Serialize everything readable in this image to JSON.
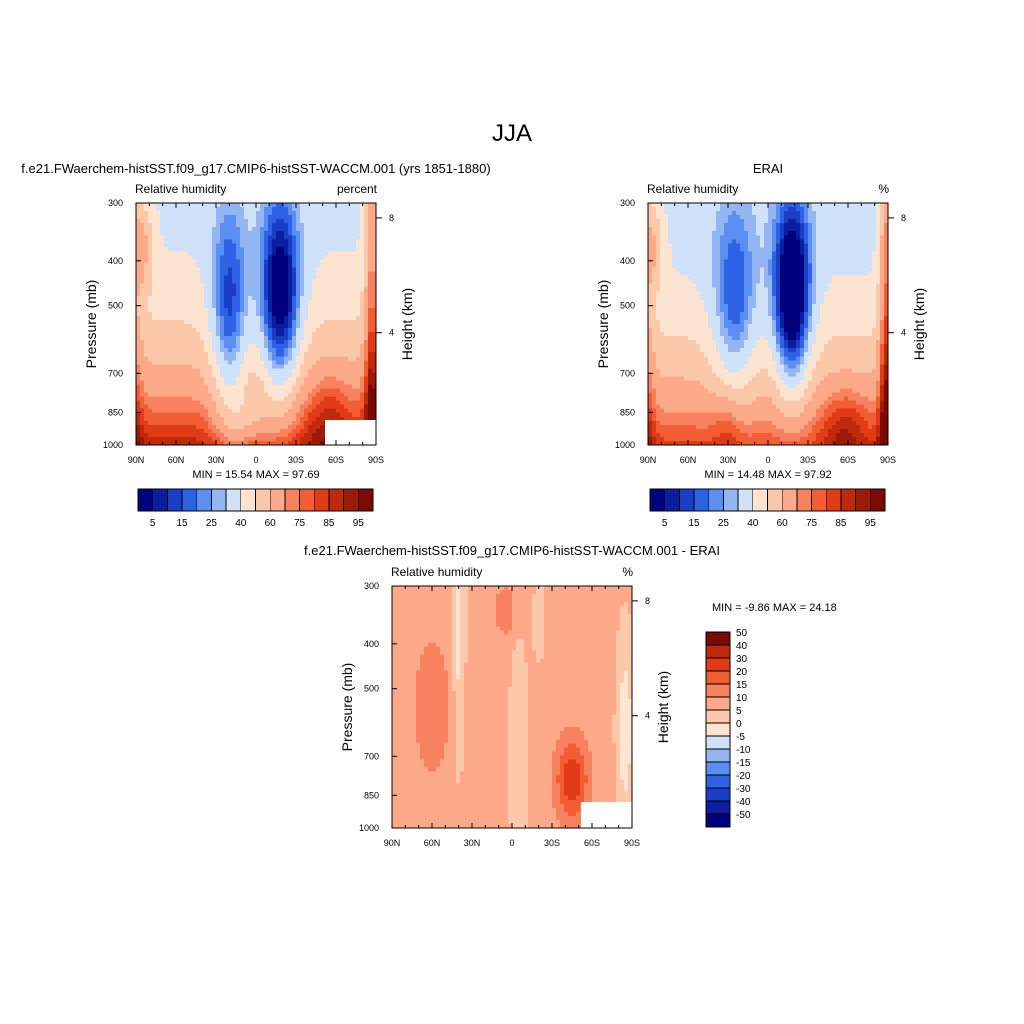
{
  "figure_title": "JJA",
  "colors": {
    "rh_scale": [
      "#00007f",
      "#0a1fa0",
      "#1a3ec6",
      "#2e62e6",
      "#5a8ef0",
      "#93b6f3",
      "#d0e2fa",
      "#fde4d1",
      "#fcc8aa",
      "#fca98a",
      "#f8825f",
      "#f25d34",
      "#e03a18",
      "#bf2a0c",
      "#9c1a06",
      "#7a0a02"
    ],
    "diff_scale": [
      "#00007f",
      "#0a1fa0",
      "#1a3ec6",
      "#2e62e6",
      "#5a8ef0",
      "#93b6f3",
      "#d0e2fa",
      "#fde4d1",
      "#fcc8aa",
      "#fca98a",
      "#f8825f",
      "#f25d34",
      "#e03a18",
      "#bf2a0c",
      "#7a0a02"
    ]
  },
  "chart_data": [
    {
      "type": "heatmap",
      "panel_title": "f.e21.FWaerchem-histSST.f09_g17.CMIP6-histSST-WACCM.001 (yrs 1851-1880)",
      "left_string": "Relative humidity",
      "right_string": "percent",
      "xlabel": "",
      "ylabel": "Pressure (mb)",
      "y2label": "Height (km)",
      "x_ticks": [
        "90N",
        "60N",
        "30N",
        "0",
        "30S",
        "60S",
        "90S"
      ],
      "y_ticks": [
        300,
        400,
        500,
        700,
        850,
        1000
      ],
      "y2_ticks": [
        "8",
        "4"
      ],
      "ylim": [
        300,
        1000
      ],
      "yscale": "log",
      "y_reversed": true,
      "stats": "MIN =  15.54  MAX =  97.69",
      "levels": [
        5,
        10,
        15,
        20,
        25,
        30,
        40,
        50,
        60,
        70,
        75,
        80,
        85,
        90,
        95
      ],
      "colorbar_labels": [
        "5",
        "15",
        "25",
        "40",
        "60",
        "75",
        "85",
        "95"
      ],
      "field": "rh_model"
    },
    {
      "type": "heatmap",
      "panel_title": "ERAI",
      "left_string": "Relative humidity",
      "right_string": "%",
      "xlabel": "",
      "ylabel": "Pressure (mb)",
      "y2label": "Height (km)",
      "x_ticks": [
        "90N",
        "60N",
        "30N",
        "0",
        "30S",
        "60S",
        "90S"
      ],
      "y_ticks": [
        300,
        400,
        500,
        700,
        850,
        1000
      ],
      "y2_ticks": [
        "8",
        "4"
      ],
      "ylim": [
        300,
        1000
      ],
      "yscale": "log",
      "y_reversed": true,
      "stats": "MIN =  14.48  MAX =  97.92",
      "levels": [
        5,
        10,
        15,
        20,
        25,
        30,
        40,
        50,
        60,
        70,
        75,
        80,
        85,
        90,
        95
      ],
      "colorbar_labels": [
        "5",
        "15",
        "25",
        "40",
        "60",
        "75",
        "85",
        "95"
      ],
      "field": "rh_obs"
    },
    {
      "type": "heatmap",
      "panel_title": "f.e21.FWaerchem-histSST.f09_g17.CMIP6-histSST-WACCM.001 - ERAI",
      "left_string": "Relative humidity",
      "right_string": "%",
      "xlabel": "",
      "ylabel": "Pressure (mb)",
      "y2label": "Height (km)",
      "x_ticks": [
        "90N",
        "60N",
        "30N",
        "0",
        "30S",
        "60S",
        "90S"
      ],
      "y_ticks": [
        300,
        400,
        500,
        700,
        850,
        1000
      ],
      "y2_ticks": [
        "8",
        "4"
      ],
      "ylim": [
        300,
        1000
      ],
      "yscale": "log",
      "y_reversed": true,
      "stats": "MIN =  -9.86  MAX =  24.18",
      "levels": [
        -50,
        -40,
        -30,
        -20,
        -15,
        -10,
        -5,
        0,
        5,
        10,
        15,
        20,
        30,
        40,
        50
      ],
      "colorbar_labels": [
        "-50",
        "-40",
        "-30",
        "-20",
        "-15",
        "-10",
        "-5",
        "0",
        "5",
        "10",
        "15",
        "20",
        "30",
        "40",
        "50"
      ],
      "field": "rh_diff"
    }
  ]
}
